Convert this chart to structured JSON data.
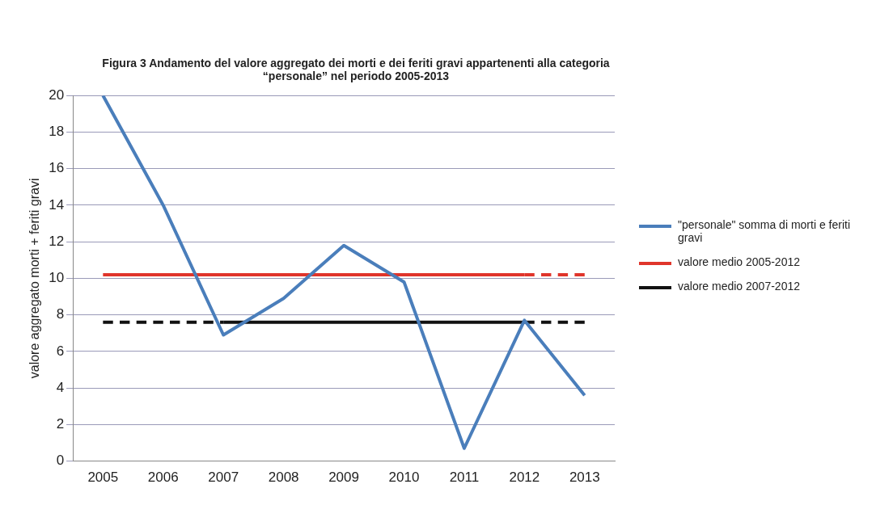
{
  "chart_data": {
    "type": "line",
    "title": "Figura 3 Andamento del valore aggregato dei morti e dei feriti gravi appartenenti alla categoria “personale” nel periodo 2005-2013",
    "ylabel": "valore aggregato morti + feriti gravi",
    "categories": [
      "2005",
      "2006",
      "2007",
      "2008",
      "2009",
      "2010",
      "2011",
      "2012",
      "2013"
    ],
    "ylim": [
      0,
      20
    ],
    "yticks": [
      0,
      2,
      4,
      6,
      8,
      10,
      12,
      14,
      16,
      18,
      20
    ],
    "grid": "y",
    "legend": "right",
    "marker": "none",
    "series": [
      {
        "name": "\"personale\" somma di morti e feriti gravi",
        "color": "#4a7ebb",
        "values": [
          20,
          14,
          6.9,
          8.9,
          11.8,
          9.8,
          0.7,
          7.7,
          3.6
        ]
      },
      {
        "name": "valore medio 2005-2012",
        "color": "#e0352b",
        "values": [
          10.2,
          10.2,
          10.2,
          10.2,
          10.2,
          10.2,
          10.2,
          10.2,
          null
        ]
      },
      {
        "color": "#e0352b",
        "line_style": "dashed",
        "values": [
          null,
          null,
          null,
          null,
          null,
          null,
          null,
          10.2,
          10.2
        ]
      },
      {
        "name": "valore medio 2007-2012",
        "color": "#111111",
        "values": [
          null,
          null,
          7.6,
          7.6,
          7.6,
          7.6,
          7.6,
          7.6,
          null
        ]
      },
      {
        "color": "#111111",
        "line_style": "dashed",
        "values": [
          7.6,
          7.6,
          7.6,
          null,
          null,
          null,
          null,
          null,
          null
        ]
      },
      {
        "color": "#111111",
        "line_style": "dashed",
        "values": [
          null,
          null,
          null,
          null,
          null,
          null,
          null,
          7.6,
          7.6
        ]
      }
    ]
  }
}
